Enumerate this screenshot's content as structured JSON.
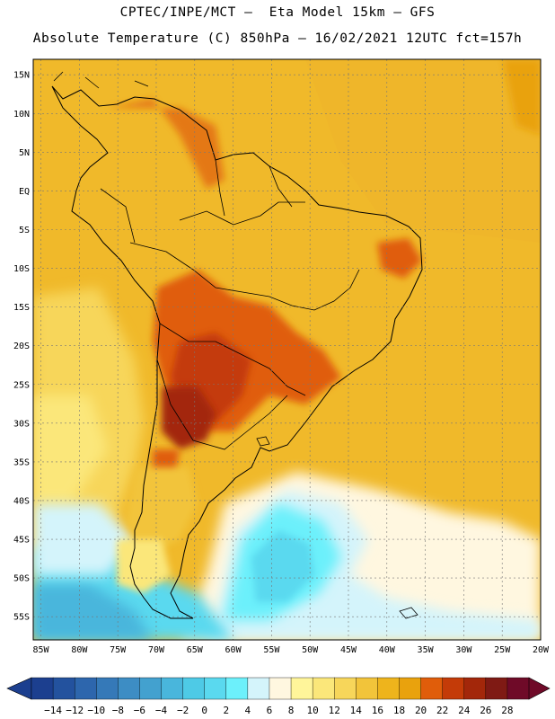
{
  "header": {
    "title_line1": "CPTEC/INPE/MCT –  Eta Model 15km – GFS",
    "title_line2": "Absolute Temperature (C) 850hPa – 16/02/2021 12UTC fct=157h"
  },
  "map": {
    "lat_labels": [
      "15N",
      "10N",
      "5N",
      "EQ",
      "5S",
      "10S",
      "15S",
      "20S",
      "25S",
      "30S",
      "35S",
      "40S",
      "45S",
      "50S",
      "55S"
    ],
    "lat_values": [
      15,
      10,
      5,
      0,
      -5,
      -10,
      -15,
      -20,
      -25,
      -30,
      -35,
      -40,
      -45,
      -50,
      -55
    ],
    "lon_labels": [
      "85W",
      "80W",
      "75W",
      "70W",
      "65W",
      "60W",
      "55W",
      "50W",
      "45W",
      "40W",
      "35W",
      "30W",
      "25W",
      "20W"
    ],
    "lon_values": [
      -85,
      -80,
      -75,
      -70,
      -65,
      -60,
      -55,
      -50,
      -45,
      -40,
      -35,
      -30,
      -25,
      -20
    ],
    "lon_range": [
      -86,
      -20
    ],
    "lat_range": [
      -58,
      17
    ]
  },
  "colorbar": {
    "labels": [
      "-14",
      "-12",
      "-10",
      "-8",
      "-6",
      "-4",
      "-2",
      "0",
      "2",
      "4",
      "6",
      "8",
      "10",
      "12",
      "14",
      "16",
      "18",
      "20",
      "22",
      "24",
      "26",
      "28"
    ],
    "colors": [
      "#1c3f8f",
      "#23529e",
      "#2d66ad",
      "#3579b8",
      "#3d8dc4",
      "#43a1cf",
      "#49b6dc",
      "#4ecae6",
      "#5ad9ef",
      "#6cf0fb",
      "#d4f4fb",
      "#fff7e0",
      "#fff59a",
      "#fbe77a",
      "#f7d65a",
      "#f2c43a",
      "#eeb41c",
      "#e9a20d",
      "#e05d0a",
      "#c43b08",
      "#a3270a",
      "#7f1a14",
      "#6f0a28"
    ]
  }
}
